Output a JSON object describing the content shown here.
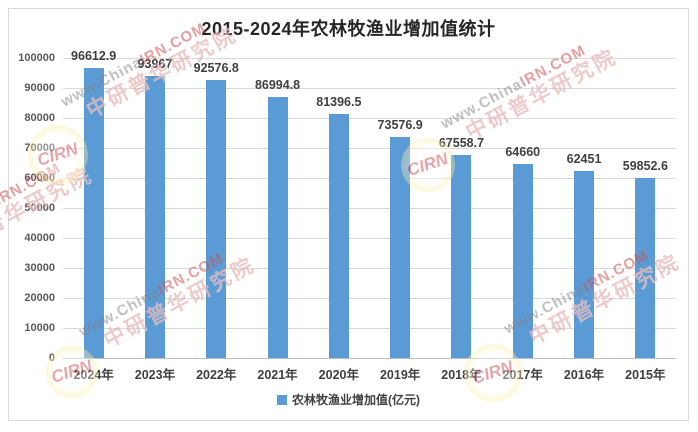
{
  "chart_data": {
    "type": "bar",
    "title": "2015-2024年农林牧渔业增加值统计",
    "categories": [
      "2024年",
      "2023年",
      "2022年",
      "2021年",
      "2020年",
      "2019年",
      "2018年",
      "2017年",
      "2016年",
      "2015年"
    ],
    "series": [
      {
        "name": "农林牧渔业增加值(亿元)",
        "values": [
          96612.9,
          93967,
          92576.8,
          86994.8,
          81396.5,
          73576.9,
          67558.7,
          64660,
          62451,
          59852.6
        ]
      }
    ],
    "value_labels": [
      "96612.9",
      "93967",
      "92576.8",
      "86994.8",
      "81396.5",
      "73576.9",
      "67558.7",
      "64660",
      "62451",
      "59852.6"
    ],
    "xlabel": "",
    "ylabel": "",
    "ylim": [
      0,
      100000
    ],
    "y_tick_step": 10000,
    "y_ticks": [
      "100000",
      "90000",
      "80000",
      "70000",
      "60000",
      "50000",
      "40000",
      "30000",
      "20000",
      "10000",
      "0"
    ],
    "grid": true,
    "legend_position": "bottom",
    "bar_color": "#5B9BD5",
    "gridline_color": "#D9D9D9",
    "axis_color": "#BFBFBF",
    "title_color": "#262626",
    "label_color": "#404040",
    "tick_color": "#595959"
  },
  "legend": {
    "label": "农林牧渔业增加值(亿元)",
    "marker_color": "#5B9BD5"
  },
  "watermark": {
    "text_gray": "www.China",
    "text_red": "IRN.COM",
    "text_cn": "中研普华研究院",
    "logo_text": "CIRN"
  }
}
